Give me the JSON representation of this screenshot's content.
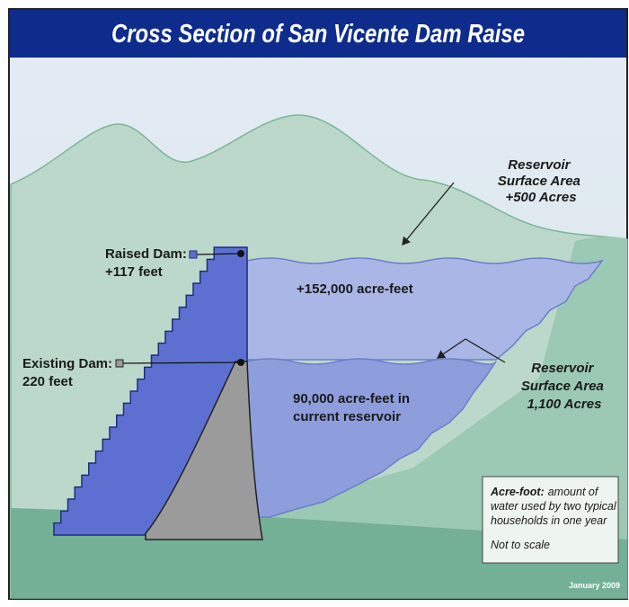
{
  "title": "Cross Section of San Vicente Dam Raise",
  "labels": {
    "surface_area_raised": [
      "Reservoir",
      "Surface Area",
      "+500 Acres"
    ],
    "raised_dam": [
      "Raised Dam:",
      "+117 feet"
    ],
    "existing_dam": [
      "Existing Dam:",
      "220 feet"
    ],
    "added_storage": "+152,000 acre-feet",
    "current_storage": [
      "90,000 acre-feet in",
      "current reservoir"
    ],
    "surface_area_current": [
      "Reservoir",
      "Surface Area",
      "1,100 Acres"
    ]
  },
  "note": {
    "term": "Acre-foot:",
    "definition": [
      "amount of",
      "water used by two typical",
      "households in one year"
    ],
    "scale": "Not to scale"
  },
  "date": "January 2009"
}
